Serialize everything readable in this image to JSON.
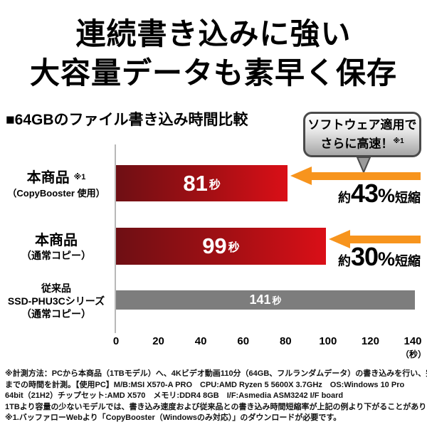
{
  "title": {
    "line1": "連続書き込みに強い",
    "line2": "大容量データも素早く保存"
  },
  "chart_heading": "■64GBのファイル書き込み時間比較",
  "callout": {
    "line1": "ソフトウェア適用で",
    "line2": "さらに高速！",
    "note": "※1"
  },
  "chart_data": {
    "type": "bar",
    "orientation": "horizontal",
    "title": "64GBのファイル書き込み時間比較",
    "categories": [
      "本商品（CopyBooster 使用）※1",
      "本商品（通常コピー）",
      "従来品 SSD-PHU3Cシリーズ（通常コピー）"
    ],
    "values": [
      81,
      99,
      141
    ],
    "value_labels": [
      "81秒",
      "99秒",
      "141秒"
    ],
    "unit": "秒",
    "xlabel": "（秒）",
    "xlim": [
      0,
      140
    ],
    "x_ticks": [
      "0",
      "20",
      "40",
      "60",
      "80",
      "100",
      "120",
      "140"
    ],
    "annotations": [
      "約43%短縮",
      "約30%短縮",
      null
    ],
    "legend": "none",
    "grid": false,
    "bar_colors": [
      "red-gradient",
      "red-gradient",
      "gray"
    ]
  },
  "rows": [
    {
      "name_line": "本商品",
      "note": "※1",
      "sub_line": "（CopyBooster 使用）",
      "value_num": "81",
      "value_unit": "秒",
      "cut_prefix": "約",
      "cut_num": "43",
      "cut_pct": "%",
      "cut_suffix": "短縮"
    },
    {
      "name_line": "本商品",
      "sub_line": "（通常コピー）",
      "value_num": "99",
      "value_unit": "秒",
      "cut_prefix": "約",
      "cut_num": "30",
      "cut_pct": "%",
      "cut_suffix": "短縮"
    },
    {
      "name_line": "従来品",
      "sub_line": "SSD-PHU3Cシリーズ",
      "sub_line2": "（通常コピー）",
      "value_num": "141",
      "value_unit": "秒"
    }
  ],
  "axis": {
    "ticks": [
      "0",
      "20",
      "40",
      "60",
      "80",
      "100",
      "120",
      "140"
    ],
    "unit": "（秒）"
  },
  "footnotes": [
    "※計測方法：PCから本商品（1TBモデル）へ、4Kビデオ動画110分（64GB、フルランダムデータ）の書き込みを行い、完了する",
    "までの時間を計測。【使用PC】M/B:MSI X570-A PRO　CPU:AMD Ryzen 5 5600X 3.7GHz　OS:Windows 10 Pro",
    "64bit（21H2）チップセット:AMD X570　メモリ:DDR4 8GB　I/F:Asmedia ASM3242 I/F board",
    "1TBより容量の少ないモデルでは、書き込み速度および従来品との書き込み時間短縮率が上記の例より下がることがあります。",
    "※1.バッファローWebより「CopyBooster（Windowsのみ対応）」のダウンロードが必要です。"
  ],
  "colors": {
    "bar_red_start": "#6e0f14",
    "bar_red_end": "#da0f17",
    "bar_gray": "#7d7d7d",
    "arrow_orange": "#f7941d",
    "callout_border": "#4a4a4a"
  }
}
